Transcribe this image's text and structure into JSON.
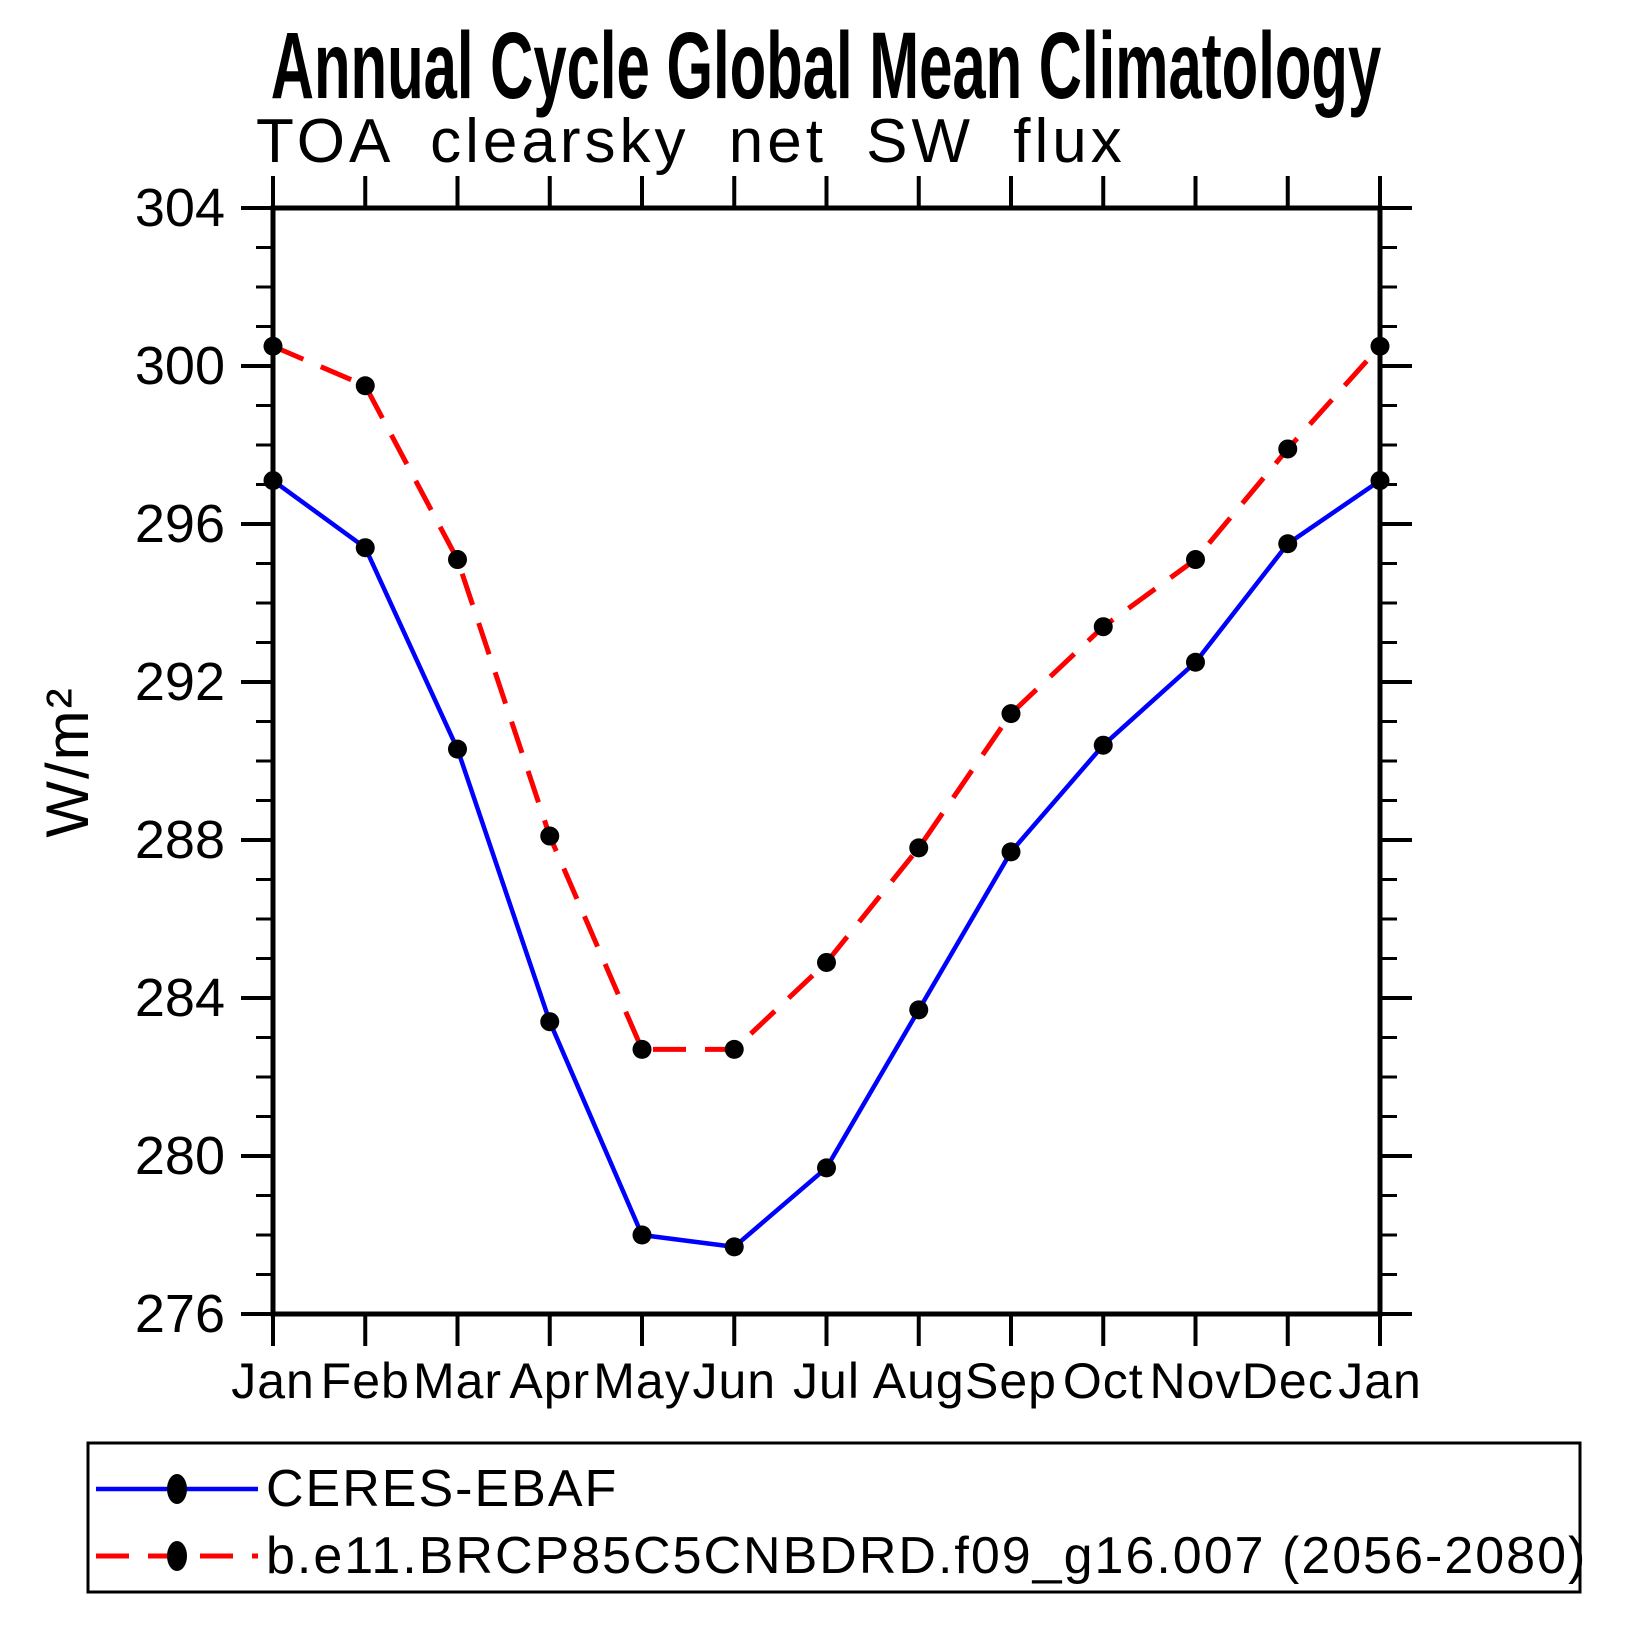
{
  "chart_data": {
    "type": "line",
    "title": "Annual Cycle Global Mean Climatology",
    "subtitle": "TOA clearsky net SW flux",
    "ylabel": "W/m²",
    "xlabel": "",
    "categories": [
      "Jan",
      "Feb",
      "Mar",
      "Apr",
      "May",
      "Jun",
      "Jul",
      "Aug",
      "Sep",
      "Oct",
      "Nov",
      "Dec",
      "Jan"
    ],
    "ylim": [
      276,
      304
    ],
    "ytick_major_step": 4,
    "ytick_minor_step": 1,
    "ytick_major_labels": [
      "276",
      "280",
      "284",
      "288",
      "292",
      "296",
      "300",
      "304"
    ],
    "grid": false,
    "legend_position": "bottom-box",
    "colors": {
      "axis": "#000000",
      "background": "#ffffff",
      "marker": "#000000",
      "ceres": "#0000ff",
      "model": "#ff0000"
    },
    "series": [
      {
        "name": "CERES-EBAF",
        "color": "#0000ff",
        "line_style": "solid",
        "line_width": 4.5,
        "marker": "filled-circle",
        "marker_color": "#000000",
        "values": [
          297.1,
          295.4,
          290.3,
          283.4,
          278.0,
          277.7,
          279.7,
          283.7,
          287.7,
          290.4,
          292.5,
          295.5,
          297.1
        ]
      },
      {
        "name": "b.e11.BRCP85C5CNBDRD.f09_g16.007 (2056-2080)",
        "color": "#ff0000",
        "line_style": "dashed",
        "line_width": 5,
        "dash_array": "33 19",
        "marker": "filled-circle",
        "marker_color": "#000000",
        "values": [
          300.5,
          299.5,
          295.1,
          288.1,
          282.7,
          282.7,
          284.9,
          287.8,
          291.2,
          293.4,
          295.1,
          297.9,
          300.5
        ]
      }
    ]
  }
}
